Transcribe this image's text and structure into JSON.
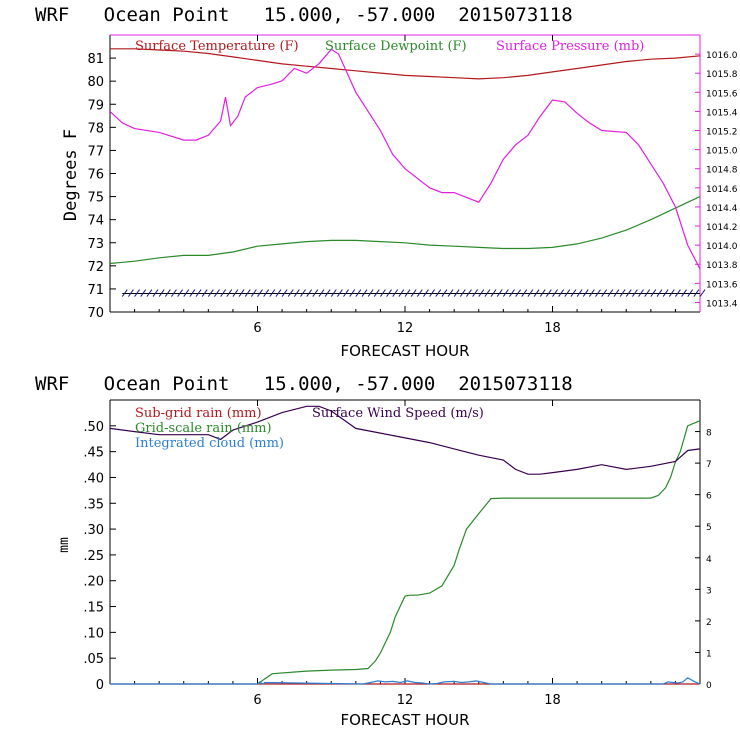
{
  "colors": {
    "temperature": "#b3181c",
    "dewpoint": "#2a8a2a",
    "pressure": "#e020e0",
    "subgrid_rain": "#b3181c",
    "gridscale_rain": "#2a8a2a",
    "cloud": "#2a7fd4",
    "wind": "#3a0050",
    "wind_tick": "#1a1a80"
  },
  "chart_data": [
    {
      "type": "line",
      "title": "WRF   Ocean Point   15.000, -57.000  2015073118",
      "xlabel": "FORECAST HOUR",
      "ylabel": "Degrees F",
      "xlim": [
        0,
        24
      ],
      "ylim": [
        70,
        82
      ],
      "xticks": [
        "6",
        "12",
        "18"
      ],
      "xtick_values": [
        6,
        12,
        18
      ],
      "yticks": [
        "70",
        "71",
        "72",
        "73",
        "74",
        "75",
        "76",
        "77",
        "78",
        "79",
        "80",
        "81"
      ],
      "y2lim": [
        1013.3,
        1016.2
      ],
      "y2ticks": [
        "1013.4",
        "1013.6",
        "1013.8",
        "1014.0",
        "1014.2",
        "1014.4",
        "1014.6",
        "1014.8",
        "1015.0",
        "1015.2",
        "1015.4",
        "1015.6",
        "1015.8",
        "1016.0"
      ],
      "legend": [
        "Surface Temperature (F)",
        "Surface Dewpoint (F)",
        "Surface Pressure (mb)"
      ],
      "series": [
        {
          "name": "Surface Temperature (F)",
          "axis": "left",
          "x": [
            0,
            1,
            2,
            3,
            4,
            5,
            6,
            7,
            8,
            9,
            10,
            11,
            12,
            13,
            14,
            15,
            16,
            17,
            18,
            19,
            20,
            21,
            22,
            23,
            24
          ],
          "y": [
            81.4,
            81.4,
            81.35,
            81.3,
            81.2,
            81.05,
            80.9,
            80.75,
            80.65,
            80.55,
            80.45,
            80.35,
            80.25,
            80.2,
            80.15,
            80.1,
            80.15,
            80.25,
            80.4,
            80.55,
            80.7,
            80.85,
            80.95,
            81.0,
            81.1
          ]
        },
        {
          "name": "Surface Dewpoint (F)",
          "axis": "left",
          "x": [
            0,
            1,
            2,
            3,
            4,
            5,
            6,
            7,
            8,
            9,
            10,
            11,
            12,
            13,
            14,
            15,
            16,
            17,
            18,
            19,
            20,
            21,
            22,
            23,
            24
          ],
          "y": [
            72.1,
            72.2,
            72.35,
            72.45,
            72.45,
            72.6,
            72.85,
            72.95,
            73.05,
            73.1,
            73.1,
            73.05,
            73.0,
            72.9,
            72.85,
            72.8,
            72.75,
            72.75,
            72.8,
            72.95,
            73.2,
            73.55,
            74.0,
            74.5,
            75.0
          ]
        },
        {
          "name": "Surface Pressure (mb)",
          "axis": "right",
          "x": [
            0,
            0.5,
            1,
            2,
            3,
            3.5,
            4,
            4.5,
            4.7,
            4.9,
            5.2,
            5.5,
            6,
            6.5,
            7,
            7.5,
            8,
            8.5,
            9,
            9.3,
            10,
            11,
            11.5,
            12,
            13,
            13.5,
            14,
            14.5,
            15,
            15.5,
            16,
            16.5,
            17,
            17.5,
            18,
            18.5,
            19,
            19.5,
            20,
            21,
            21.5,
            22,
            22.5,
            23,
            23.5,
            24
          ],
          "y": [
            1015.4,
            1015.28,
            1015.22,
            1015.18,
            1015.1,
            1015.1,
            1015.15,
            1015.3,
            1015.55,
            1015.25,
            1015.35,
            1015.55,
            1015.65,
            1015.68,
            1015.72,
            1015.85,
            1015.8,
            1015.9,
            1016.05,
            1016.0,
            1015.6,
            1015.2,
            1014.95,
            1014.8,
            1014.6,
            1014.55,
            1014.55,
            1014.5,
            1014.45,
            1014.65,
            1014.9,
            1015.05,
            1015.15,
            1015.35,
            1015.52,
            1015.5,
            1015.38,
            1015.28,
            1015.2,
            1015.18,
            1015.05,
            1014.85,
            1014.65,
            1014.4,
            1014.0,
            1013.75
          ]
        }
      ],
      "wind_barbs": {
        "name": "wind barbs",
        "x_start": 0.5,
        "x_end": 24,
        "y": 70.8
      }
    },
    {
      "type": "line",
      "title": "WRF   Ocean Point   15.000, -57.000  2015073118",
      "xlabel": "FORECAST HOUR",
      "ylabel": "mm",
      "xlim": [
        0,
        24
      ],
      "ylim": [
        0,
        0.55
      ],
      "xticks": [
        "6",
        "12",
        "18"
      ],
      "xtick_values": [
        6,
        12,
        18
      ],
      "yticks": [
        "0",
        ".05",
        ".10",
        ".15",
        ".20",
        ".25",
        ".30",
        ".35",
        ".40",
        ".45",
        ".50"
      ],
      "y2lim": [
        0,
        9
      ],
      "y2ticks": [
        "0",
        "1",
        "2",
        "3",
        "4",
        "5",
        "6",
        "7",
        "8"
      ],
      "legend": [
        "Sub-grid rain (mm)",
        "Grid-scale rain (mm)",
        "Integrated cloud (mm)",
        "Surface Wind Speed (m/s)"
      ],
      "series": [
        {
          "name": "Sub-grid rain (mm)",
          "axis": "left",
          "x": [
            0,
            24
          ],
          "y": [
            0,
            0
          ]
        },
        {
          "name": "Grid-scale rain (mm)",
          "axis": "left",
          "x": [
            6,
            6.3,
            6.6,
            8,
            9,
            10,
            10.5,
            10.8,
            11.0,
            11.2,
            11.4,
            11.6,
            11.8,
            12.0,
            12.2,
            12.5,
            13,
            13.5,
            14,
            14.2,
            14.5,
            15,
            15.5,
            16,
            16.5,
            17,
            18,
            19,
            20,
            21,
            22,
            22.3,
            22.6,
            22.8,
            23.0,
            23.2,
            23.5,
            24
          ],
          "y": [
            0.0,
            0.01,
            0.02,
            0.025,
            0.027,
            0.028,
            0.03,
            0.045,
            0.06,
            0.08,
            0.1,
            0.13,
            0.15,
            0.17,
            0.172,
            0.172,
            0.176,
            0.19,
            0.23,
            0.26,
            0.3,
            0.33,
            0.359,
            0.36,
            0.36,
            0.36,
            0.36,
            0.36,
            0.36,
            0.36,
            0.36,
            0.365,
            0.38,
            0.4,
            0.43,
            0.45,
            0.5,
            0.51
          ]
        },
        {
          "name": "Integrated cloud (mm)",
          "axis": "left",
          "x": [
            0,
            6,
            6.1,
            6.2,
            6.3,
            10.3,
            10.6,
            10.9,
            11.2,
            11.5,
            11.8,
            12.1,
            12.4,
            12.7,
            13,
            13.3,
            13.6,
            14,
            14.3,
            14.6,
            14.9,
            15.2,
            15.5,
            22.5,
            22.7,
            22.9,
            23.1,
            23.3,
            23.5,
            23.8,
            24
          ],
          "y": [
            0,
            0,
            0.004,
            0.0,
            0.003,
            0,
            0.003,
            0.006,
            0.004,
            0.005,
            0.003,
            0.006,
            0.003,
            0.002,
            0,
            0.001,
            0.004,
            0.005,
            0.003,
            0.004,
            0.006,
            0.003,
            0,
            0,
            0.004,
            0.003,
            0.002,
            0.004,
            0.012,
            0.004,
            0
          ]
        },
        {
          "name": "Surface Wind Speed (m/s)",
          "axis": "right",
          "x": [
            0,
            1,
            2,
            3,
            4,
            4.5,
            5,
            6,
            7,
            8,
            8.5,
            9,
            10,
            11,
            12,
            13,
            14,
            15,
            16,
            16.5,
            17,
            17.5,
            18,
            19,
            20,
            21,
            22,
            23,
            23.5,
            24
          ],
          "y": [
            8.1,
            8.0,
            7.9,
            7.9,
            7.9,
            7.75,
            8.05,
            8.3,
            8.6,
            8.8,
            8.8,
            8.65,
            8.1,
            7.95,
            7.8,
            7.65,
            7.45,
            7.25,
            7.1,
            6.8,
            6.65,
            6.65,
            6.7,
            6.8,
            6.95,
            6.8,
            6.9,
            7.05,
            7.4,
            7.45
          ]
        }
      ]
    }
  ]
}
